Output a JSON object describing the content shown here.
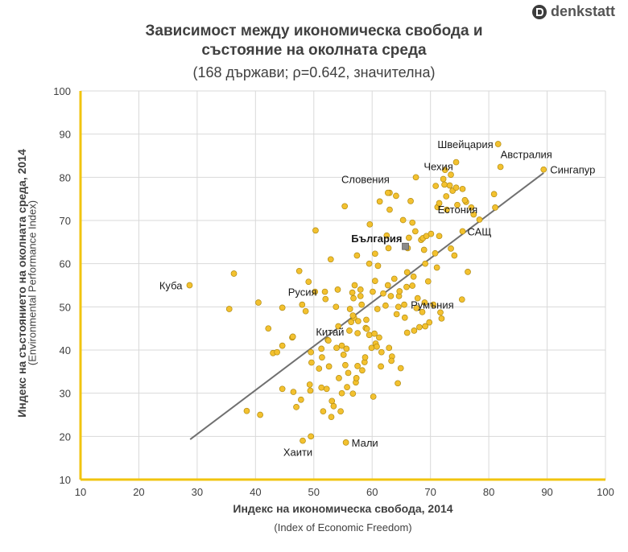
{
  "brand": {
    "name": "denkstatt",
    "icon": "denkstatt-logo-icon"
  },
  "title_line1": "Зависимост между икономическа свобода и",
  "title_line2": "състояние на околната среда",
  "subtitle": "(168 държави; ρ=0.642, значителна)",
  "ylabel_main": "Индекс на състоянието на околната среда, 2014",
  "ylabel_sub": "(Environmental Performance Index)",
  "xlabel_main": "Индекс на икономическа свобода, 2014",
  "xlabel_sub": "(Index of Economic Freedom)",
  "colors": {
    "point_fill": "#f3c12f",
    "point_stroke": "#b08a10",
    "axis": "#f1c40f",
    "trend": "#707070",
    "highlight": "#8a8a8a"
  },
  "chart_data": {
    "type": "scatter",
    "xlim": [
      10,
      100
    ],
    "ylim": [
      10,
      100
    ],
    "xticks": [
      10,
      20,
      30,
      40,
      50,
      60,
      70,
      80,
      90,
      100
    ],
    "yticks": [
      10,
      20,
      30,
      40,
      50,
      60,
      70,
      80,
      90,
      100
    ],
    "grid": true,
    "trendline": [
      [
        28.8,
        19.3
      ],
      [
        89.4,
        81.0
      ]
    ],
    "labeled_points": [
      {
        "label": "Швейцария",
        "x": 81.6,
        "y": 87.7,
        "anchor": "end",
        "dx": -6,
        "dy": 5
      },
      {
        "label": "Австралия",
        "x": 82.0,
        "y": 82.4,
        "anchor": "start",
        "dx": 0,
        "dy": -11
      },
      {
        "label": "Сингапур",
        "x": 89.4,
        "y": 81.8,
        "anchor": "start",
        "dx": 8,
        "dy": 5
      },
      {
        "label": "Чехия",
        "x": 72.2,
        "y": 79.6,
        "anchor": "middle",
        "dx": -6,
        "dy": -11
      },
      {
        "label": "Словения",
        "x": 62.7,
        "y": 76.4,
        "anchor": "end",
        "dx": 2,
        "dy": -12
      },
      {
        "label": "Естония",
        "x": 75.9,
        "y": 74.7,
        "anchor": "middle",
        "dx": -9,
        "dy": 16
      },
      {
        "label": "САЩ",
        "x": 75.5,
        "y": 67.5,
        "anchor": "start",
        "dx": 6,
        "dy": 5
      },
      {
        "label": "България",
        "x": 65.7,
        "y": 64.0,
        "anchor": "end",
        "dx": -4,
        "dy": -5,
        "bold": true,
        "highlight": true
      },
      {
        "label": "Куба",
        "x": 28.7,
        "y": 55.0,
        "anchor": "end",
        "dx": -9,
        "dy": 5
      },
      {
        "label": "Русия",
        "x": 51.9,
        "y": 53.5,
        "anchor": "end",
        "dx": -10,
        "dy": 5
      },
      {
        "label": "Румъния",
        "x": 65.5,
        "y": 50.5,
        "anchor": "start",
        "dx": 8,
        "dy": 5
      },
      {
        "label": "Китай",
        "x": 52.5,
        "y": 42.2,
        "anchor": "middle",
        "dx": 2,
        "dy": -6
      },
      {
        "label": "Мали",
        "x": 55.5,
        "y": 18.6,
        "anchor": "start",
        "dx": 7,
        "dy": 5
      },
      {
        "label": "Хаити",
        "x": 48.1,
        "y": 19.0,
        "anchor": "middle",
        "dx": -6,
        "dy": 19
      }
    ],
    "points": [
      [
        36.3,
        57.7
      ],
      [
        35.5,
        49.5
      ],
      [
        40.5,
        51.0
      ],
      [
        38.5,
        25.9
      ],
      [
        40.8,
        25.0
      ],
      [
        42.2,
        45.0
      ],
      [
        43.0,
        39.3
      ],
      [
        43.7,
        39.5
      ],
      [
        44.6,
        41.0
      ],
      [
        44.6,
        31.0
      ],
      [
        44.6,
        49.8
      ],
      [
        46.3,
        42.9
      ],
      [
        46.4,
        43.1
      ],
      [
        46.5,
        30.3
      ],
      [
        47.5,
        58.3
      ],
      [
        47.8,
        28.5
      ],
      [
        48.0,
        50.5
      ],
      [
        48.6,
        49.0
      ],
      [
        49.1,
        55.8
      ],
      [
        49.3,
        32.0
      ],
      [
        49.6,
        37.1
      ],
      [
        49.5,
        39.5
      ],
      [
        49.5,
        20.0
      ],
      [
        49.4,
        30.6
      ],
      [
        50.2,
        53.5
      ],
      [
        50.3,
        67.7
      ],
      [
        50.9,
        35.7
      ],
      [
        51.4,
        38.3
      ],
      [
        51.3,
        40.3
      ],
      [
        51.3,
        31.3
      ],
      [
        51.6,
        25.8
      ],
      [
        52.0,
        51.8
      ],
      [
        52.2,
        31.0
      ],
      [
        52.4,
        42.3
      ],
      [
        52.6,
        36.2
      ],
      [
        52.9,
        61.0
      ],
      [
        53.0,
        24.5
      ],
      [
        53.1,
        28.2
      ],
      [
        53.4,
        27.0
      ],
      [
        53.8,
        50.0
      ],
      [
        53.9,
        40.5
      ],
      [
        54.1,
        54.0
      ],
      [
        54.2,
        45.5
      ],
      [
        54.6,
        25.8
      ],
      [
        54.8,
        41.0
      ],
      [
        54.8,
        30.0
      ],
      [
        55.1,
        38.9
      ],
      [
        55.3,
        73.3
      ],
      [
        55.4,
        36.5
      ],
      [
        55.6,
        40.3
      ],
      [
        55.7,
        31.4
      ],
      [
        55.9,
        34.7
      ],
      [
        56.1,
        44.5
      ],
      [
        56.2,
        49.5
      ],
      [
        56.4,
        46.5
      ],
      [
        56.6,
        53.3
      ],
      [
        56.7,
        29.9
      ],
      [
        56.8,
        52.0
      ],
      [
        56.9,
        47.5
      ],
      [
        57.0,
        55.0
      ],
      [
        57.2,
        32.5
      ],
      [
        57.3,
        33.5
      ],
      [
        57.5,
        36.3
      ],
      [
        57.4,
        61.9
      ],
      [
        57.5,
        43.9
      ],
      [
        57.6,
        46.7
      ],
      [
        58.0,
        54.0
      ],
      [
        58.2,
        50.5
      ],
      [
        58.3,
        35.3
      ],
      [
        58.7,
        37.2
      ],
      [
        58.8,
        38.3
      ],
      [
        58.9,
        45.1
      ],
      [
        59.1,
        44.9
      ],
      [
        59.0,
        47.0
      ],
      [
        59.5,
        43.5
      ],
      [
        59.9,
        40.5
      ],
      [
        60.2,
        29.2
      ],
      [
        60.1,
        53.5
      ],
      [
        60.4,
        43.8
      ],
      [
        60.5,
        62.3
      ],
      [
        60.6,
        41.5
      ],
      [
        60.8,
        40.8
      ],
      [
        60.9,
        49.5
      ],
      [
        61.2,
        42.9
      ],
      [
        61.3,
        74.4
      ],
      [
        61.5,
        36.2
      ],
      [
        61.6,
        39.5
      ],
      [
        61.9,
        53.1
      ],
      [
        62.3,
        50.3
      ],
      [
        62.5,
        66.5
      ],
      [
        62.7,
        55.0
      ],
      [
        62.9,
        40.5
      ],
      [
        63.0,
        76.4
      ],
      [
        63.2,
        52.5
      ],
      [
        63.4,
        38.5
      ],
      [
        63.3,
        37.5
      ],
      [
        63.8,
        56.5
      ],
      [
        64.1,
        75.7
      ],
      [
        64.2,
        48.3
      ],
      [
        64.5,
        50.0
      ],
      [
        64.6,
        52.5
      ],
      [
        64.7,
        53.6
      ],
      [
        64.9,
        35.8
      ],
      [
        64.4,
        32.3
      ],
      [
        65.3,
        70.1
      ],
      [
        65.6,
        47.5
      ],
      [
        65.9,
        54.6
      ],
      [
        66.1,
        63.6
      ],
      [
        66.3,
        66.0
      ],
      [
        66.6,
        74.5
      ],
      [
        66.9,
        54.9
      ],
      [
        66.9,
        69.5
      ],
      [
        67.1,
        57.0
      ],
      [
        67.2,
        44.5
      ],
      [
        67.4,
        67.5
      ],
      [
        67.6,
        49.7
      ],
      [
        67.8,
        52.0
      ],
      [
        68.1,
        45.3
      ],
      [
        68.4,
        65.5
      ],
      [
        68.6,
        48.8
      ],
      [
        68.7,
        65.9
      ],
      [
        68.9,
        63.2
      ],
      [
        69.1,
        60.0
      ],
      [
        69.1,
        45.5
      ],
      [
        69.3,
        66.4
      ],
      [
        69.6,
        55.9
      ],
      [
        69.8,
        46.4
      ],
      [
        70.1,
        66.9
      ],
      [
        70.8,
        62.4
      ],
      [
        70.9,
        78.0
      ],
      [
        71.1,
        59.1
      ],
      [
        71.2,
        73.1
      ],
      [
        71.5,
        66.4
      ],
      [
        71.7,
        48.7
      ],
      [
        71.9,
        47.3
      ],
      [
        72.5,
        81.7
      ],
      [
        72.4,
        78.3
      ],
      [
        72.7,
        75.6
      ],
      [
        73.3,
        78.1
      ],
      [
        73.5,
        80.6
      ],
      [
        73.8,
        76.9
      ],
      [
        74.1,
        61.9
      ],
      [
        74.4,
        77.6
      ],
      [
        74.6,
        73.6
      ],
      [
        75.5,
        77.3
      ],
      [
        75.4,
        51.7
      ],
      [
        76.1,
        74.3
      ],
      [
        76.4,
        58.1
      ],
      [
        77.0,
        73.0
      ],
      [
        77.4,
        71.4
      ],
      [
        78.4,
        70.2
      ],
      [
        80.9,
        76.1
      ],
      [
        81.1,
        73.0
      ],
      [
        72.8,
        72.5
      ],
      [
        71.5,
        74.0
      ],
      [
        67.5,
        80.0
      ],
      [
        63.0,
        72.5
      ],
      [
        73.5,
        63.5
      ],
      [
        69.0,
        51.0
      ],
      [
        66.0,
        58.0
      ],
      [
        58.0,
        52.5
      ],
      [
        60.5,
        56.0
      ],
      [
        47.0,
        26.8
      ],
      [
        56.7,
        48.0
      ],
      [
        54.3,
        33.5
      ],
      [
        61.0,
        59.5
      ],
      [
        59.5,
        60.0
      ],
      [
        62.8,
        63.6
      ],
      [
        70.5,
        50.5
      ],
      [
        66.0,
        44.0
      ],
      [
        74.4,
        83.5
      ],
      [
        59.6,
        69.1
      ]
    ]
  }
}
